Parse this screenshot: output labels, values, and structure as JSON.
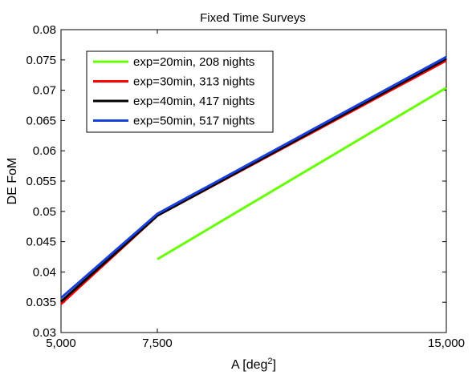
{
  "chart_data": {
    "type": "line",
    "title": "Fixed Time Surveys",
    "xlabel": "A [deg",
    "xlabel_sup": "2",
    "xlabel_end": "]",
    "ylabel": "DE FoM",
    "xlim": [
      5000,
      15000
    ],
    "ylim": [
      0.03,
      0.08
    ],
    "x_ticks": [
      {
        "value": 5000,
        "label": "5,000"
      },
      {
        "value": 7500,
        "label": "7,500"
      },
      {
        "value": 15000,
        "label": "15,000"
      }
    ],
    "y_ticks": [
      {
        "value": 0.03,
        "label": "0.03"
      },
      {
        "value": 0.035,
        "label": "0.035"
      },
      {
        "value": 0.04,
        "label": "0.04"
      },
      {
        "value": 0.045,
        "label": "0.045"
      },
      {
        "value": 0.05,
        "label": "0.05"
      },
      {
        "value": 0.055,
        "label": "0.055"
      },
      {
        "value": 0.06,
        "label": "0.06"
      },
      {
        "value": 0.065,
        "label": "0.065"
      },
      {
        "value": 0.07,
        "label": "0.07"
      },
      {
        "value": 0.075,
        "label": "0.075"
      },
      {
        "value": 0.08,
        "label": "0.08"
      }
    ],
    "grid": false,
    "legend_position": "top-left",
    "series": [
      {
        "name": "exp=20min, 208 nights",
        "color": "#66ff00",
        "x": [
          7500,
          15000
        ],
        "y": [
          0.0421,
          0.0704
        ]
      },
      {
        "name": "exp=30min, 313 nights",
        "color": "#ff0000",
        "x": [
          5000,
          7500,
          15000
        ],
        "y": [
          0.0347,
          0.0493,
          0.0749
        ]
      },
      {
        "name": "exp=40min, 417 nights",
        "color": "#000000",
        "x": [
          5000,
          7500,
          15000
        ],
        "y": [
          0.0351,
          0.0493,
          0.0752
        ]
      },
      {
        "name": "exp=50min, 517 nights",
        "color": "#1a3fdb",
        "x": [
          5000,
          7500,
          15000
        ],
        "y": [
          0.0357,
          0.0496,
          0.0755
        ]
      }
    ]
  }
}
